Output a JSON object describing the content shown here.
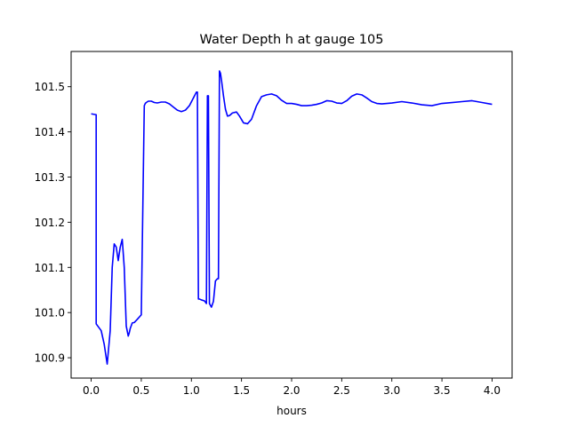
{
  "chart_data": {
    "type": "line",
    "title": "Water Depth h at gauge 105",
    "xlabel": "hours",
    "ylabel": "",
    "xlim": [
      -0.2,
      4.2
    ],
    "ylim": [
      100.855,
      101.578
    ],
    "xticks": [
      0.0,
      0.5,
      1.0,
      1.5,
      2.0,
      2.5,
      3.0,
      3.5,
      4.0
    ],
    "xtick_labels": [
      "0.0",
      "0.5",
      "1.0",
      "1.5",
      "2.0",
      "2.5",
      "3.0",
      "3.5",
      "4.0"
    ],
    "yticks": [
      100.9,
      101.0,
      101.1,
      101.2,
      101.3,
      101.4,
      101.5
    ],
    "ytick_labels": [
      "100.9",
      "101.0",
      "101.1",
      "101.2",
      "101.3",
      "101.4",
      "101.5"
    ],
    "grid": false,
    "series": [
      {
        "color": "#0000ff",
        "x": [
          0.0,
          0.05,
          0.05,
          0.1,
          0.13,
          0.16,
          0.19,
          0.21,
          0.23,
          0.25,
          0.27,
          0.29,
          0.31,
          0.33,
          0.35,
          0.37,
          0.38,
          0.39,
          0.41,
          0.43,
          0.46,
          0.5,
          0.53,
          0.54,
          0.55,
          0.57,
          0.6,
          0.63,
          0.66,
          0.7,
          0.74,
          0.78,
          0.82,
          0.86,
          0.9,
          0.94,
          0.98,
          1.02,
          1.05,
          1.06,
          1.07,
          1.08,
          1.1,
          1.13,
          1.15,
          1.16,
          1.17,
          1.18,
          1.2,
          1.22,
          1.24,
          1.26,
          1.27,
          1.28,
          1.29,
          1.3,
          1.32,
          1.34,
          1.36,
          1.38,
          1.41,
          1.45,
          1.48,
          1.52,
          1.56,
          1.6,
          1.65,
          1.7,
          1.75,
          1.8,
          1.85,
          1.9,
          1.95,
          2.0,
          2.05,
          2.1,
          2.15,
          2.2,
          2.25,
          2.3,
          2.35,
          2.4,
          2.45,
          2.5,
          2.55,
          2.6,
          2.65,
          2.7,
          2.75,
          2.8,
          2.85,
          2.9,
          2.95,
          3.0,
          3.1,
          3.2,
          3.3,
          3.4,
          3.5,
          3.6,
          3.7,
          3.8,
          3.9,
          4.0
        ],
        "y": [
          101.44,
          101.438,
          100.975,
          100.96,
          100.93,
          100.886,
          100.96,
          101.1,
          101.152,
          101.145,
          101.115,
          101.145,
          101.162,
          101.1,
          100.97,
          100.948,
          100.955,
          100.965,
          100.977,
          100.978,
          100.985,
          100.995,
          101.458,
          101.463,
          101.465,
          101.468,
          101.468,
          101.465,
          101.464,
          101.466,
          101.466,
          101.462,
          101.455,
          101.448,
          101.445,
          101.448,
          101.458,
          101.475,
          101.488,
          101.488,
          101.03,
          101.03,
          101.028,
          101.026,
          101.02,
          101.48,
          101.48,
          101.02,
          101.012,
          101.025,
          101.07,
          101.075,
          101.075,
          101.535,
          101.53,
          101.515,
          101.48,
          101.45,
          101.435,
          101.436,
          101.442,
          101.444,
          101.435,
          101.42,
          101.418,
          101.428,
          101.458,
          101.478,
          101.482,
          101.484,
          101.48,
          101.47,
          101.463,
          101.463,
          101.461,
          101.458,
          101.458,
          101.459,
          101.461,
          101.464,
          101.469,
          101.468,
          101.464,
          101.463,
          101.469,
          101.479,
          101.484,
          101.482,
          101.475,
          101.467,
          101.463,
          101.462,
          101.463,
          101.464,
          101.467,
          101.464,
          101.46,
          101.458,
          101.463,
          101.465,
          101.467,
          101.469,
          101.465,
          101.461
        ]
      }
    ]
  }
}
